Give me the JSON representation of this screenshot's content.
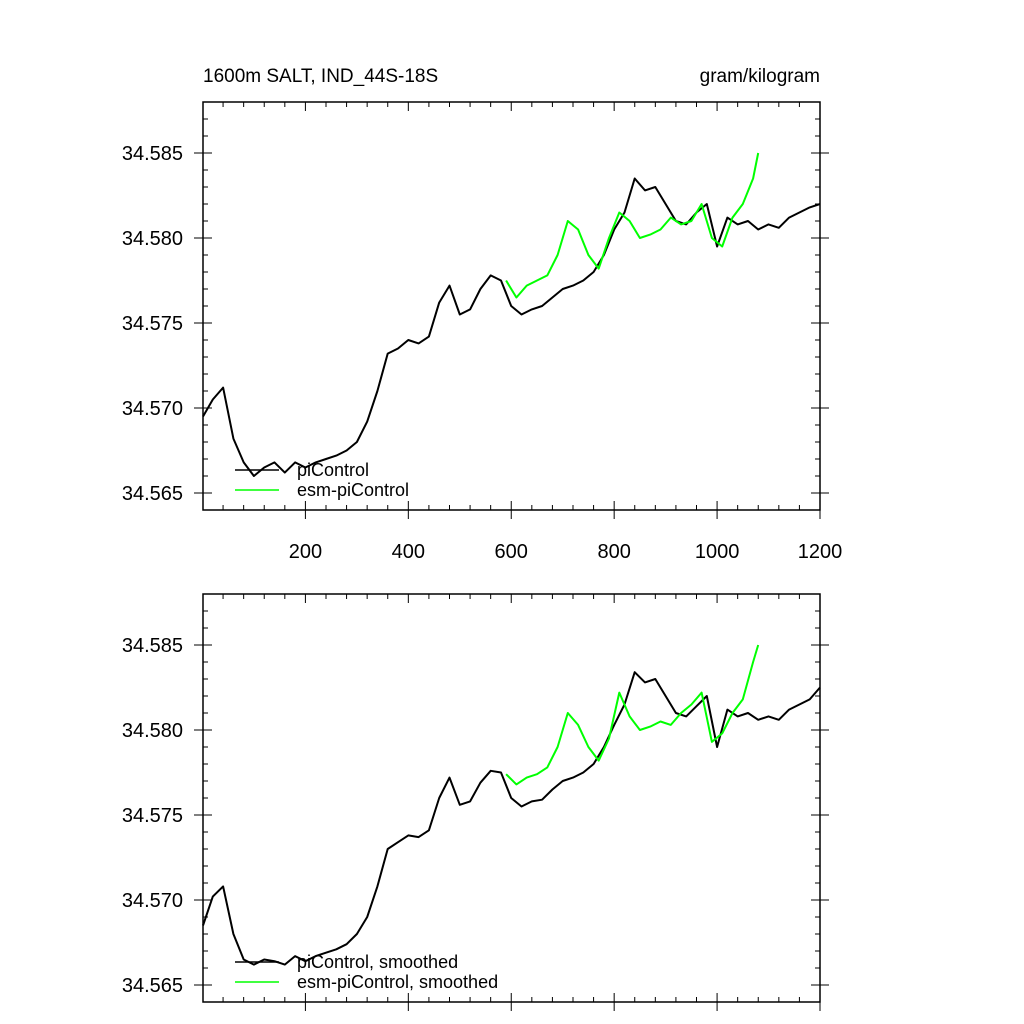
{
  "header": {
    "title": "1600m SALT, IND_44S-18S",
    "units": "gram/kilogram"
  },
  "colors": {
    "piControl": "#000000",
    "esm_piControl": "#00ff00",
    "frame": "#000000"
  },
  "chart_data": [
    {
      "type": "line",
      "title": "1600m SALT, IND_44S-18S",
      "units_label": "gram/kilogram",
      "xlim": [
        1,
        1200
      ],
      "ylim": [
        34.564,
        34.588
      ],
      "xticks": [
        200,
        400,
        600,
        800,
        1000,
        1200
      ],
      "yticks": [
        34.565,
        34.57,
        34.575,
        34.58,
        34.585
      ],
      "ytick_labels": [
        "34.565",
        "34.570",
        "34.575",
        "34.580",
        "34.585"
      ],
      "xtick_labels": [
        "200",
        "400",
        "600",
        "800",
        "1000",
        "1200"
      ],
      "legend": {
        "position": "bottom-left",
        "entries": [
          "piControl",
          "esm-piControl"
        ]
      },
      "grid": false,
      "series": [
        {
          "name": "piControl",
          "x": [
            1,
            20,
            40,
            60,
            80,
            100,
            120,
            140,
            160,
            180,
            200,
            220,
            240,
            260,
            280,
            300,
            320,
            340,
            360,
            380,
            400,
            420,
            440,
            460,
            480,
            500,
            520,
            540,
            560,
            580,
            600,
            620,
            640,
            660,
            680,
            700,
            720,
            740,
            760,
            780,
            800,
            820,
            840,
            860,
            880,
            900,
            920,
            940,
            960,
            980,
            1000,
            1020,
            1040,
            1060,
            1080,
            1100,
            1120,
            1140,
            1160,
            1180,
            1200
          ],
          "y": [
            34.5695,
            34.5705,
            34.5712,
            34.5682,
            34.5668,
            34.566,
            34.5665,
            34.5668,
            34.5662,
            34.5668,
            34.5665,
            34.5668,
            34.567,
            34.5672,
            34.5675,
            34.568,
            34.5692,
            34.571,
            34.5732,
            34.5735,
            34.574,
            34.5738,
            34.5742,
            34.5762,
            34.5772,
            34.5755,
            34.5758,
            34.577,
            34.5778,
            34.5775,
            34.576,
            34.5755,
            34.5758,
            34.576,
            34.5765,
            34.577,
            34.5772,
            34.5775,
            34.578,
            34.579,
            34.5805,
            34.5815,
            34.5835,
            34.5828,
            34.583,
            34.582,
            34.581,
            34.5808,
            34.5815,
            34.582,
            34.5795,
            34.5812,
            34.5808,
            34.581,
            34.5805,
            34.5808,
            34.5806,
            34.5812,
            34.5815,
            34.5818,
            34.582
          ]
        },
        {
          "name": "esm-piControl",
          "x": [
            590,
            610,
            630,
            650,
            670,
            690,
            710,
            730,
            750,
            770,
            790,
            810,
            830,
            850,
            870,
            890,
            910,
            930,
            950,
            970,
            990,
            1010,
            1030,
            1050,
            1070,
            1080
          ],
          "y": [
            34.5775,
            34.5765,
            34.5772,
            34.5775,
            34.5778,
            34.579,
            34.581,
            34.5805,
            34.579,
            34.5782,
            34.58,
            34.5815,
            34.581,
            34.58,
            34.5802,
            34.5805,
            34.5812,
            34.5808,
            34.581,
            34.582,
            34.58,
            34.5795,
            34.5812,
            34.582,
            34.5835,
            34.585
          ]
        }
      ]
    },
    {
      "type": "line",
      "title": "",
      "xlim": [
        1,
        1200
      ],
      "ylim": [
        34.564,
        34.588
      ],
      "yticks": [
        34.565,
        34.57,
        34.575,
        34.58,
        34.585
      ],
      "ytick_labels": [
        "34.565",
        "34.570",
        "34.575",
        "34.580",
        "34.585"
      ],
      "legend": {
        "position": "bottom-left",
        "entries": [
          "piControl, smoothed",
          "esm-piControl, smoothed"
        ]
      },
      "grid": false,
      "series": [
        {
          "name": "piControl, smoothed",
          "x": [
            1,
            20,
            40,
            60,
            80,
            100,
            120,
            140,
            160,
            180,
            200,
            220,
            240,
            260,
            280,
            300,
            320,
            340,
            360,
            380,
            400,
            420,
            440,
            460,
            480,
            500,
            520,
            540,
            560,
            580,
            600,
            620,
            640,
            660,
            680,
            700,
            720,
            740,
            760,
            780,
            800,
            820,
            840,
            860,
            880,
            900,
            920,
            940,
            960,
            980,
            1000,
            1020,
            1040,
            1060,
            1080,
            1100,
            1120,
            1140,
            1160,
            1180,
            1200
          ],
          "y": [
            34.5685,
            34.5702,
            34.5708,
            34.568,
            34.5665,
            34.5662,
            34.5665,
            34.5664,
            34.5662,
            34.5667,
            34.5664,
            34.5667,
            34.5669,
            34.5671,
            34.5674,
            34.568,
            34.569,
            34.5708,
            34.573,
            34.5734,
            34.5738,
            34.5737,
            34.5741,
            34.576,
            34.5772,
            34.5756,
            34.5758,
            34.5769,
            34.5776,
            34.5775,
            34.576,
            34.5755,
            34.5758,
            34.5759,
            34.5765,
            34.577,
            34.5772,
            34.5775,
            34.578,
            34.579,
            34.5803,
            34.5815,
            34.5834,
            34.5828,
            34.583,
            34.582,
            34.581,
            34.5808,
            34.5814,
            34.582,
            34.579,
            34.5812,
            34.5808,
            34.581,
            34.5806,
            34.5808,
            34.5806,
            34.5812,
            34.5815,
            34.5818,
            34.5825
          ]
        },
        {
          "name": "esm-piControl, smoothed",
          "x": [
            590,
            610,
            630,
            650,
            670,
            690,
            710,
            730,
            750,
            770,
            790,
            810,
            830,
            850,
            870,
            890,
            910,
            930,
            950,
            970,
            990,
            1010,
            1030,
            1050,
            1070,
            1080
          ],
          "y": [
            34.5774,
            34.5768,
            34.5772,
            34.5774,
            34.5778,
            34.579,
            34.581,
            34.5803,
            34.579,
            34.5782,
            34.5795,
            34.5822,
            34.5808,
            34.58,
            34.5802,
            34.5805,
            34.5803,
            34.581,
            34.5815,
            34.5822,
            34.5793,
            34.5798,
            34.581,
            34.5818,
            34.584,
            34.585
          ]
        }
      ]
    }
  ]
}
